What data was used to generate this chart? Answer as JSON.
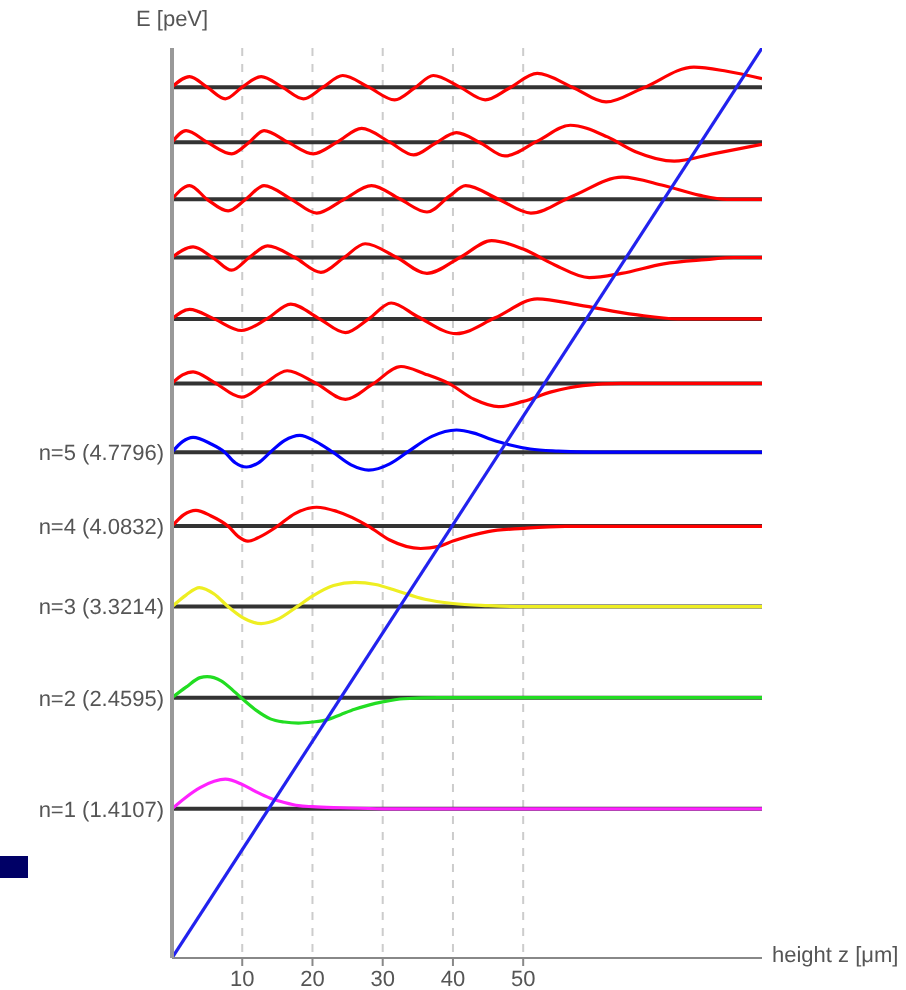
{
  "chart_data": {
    "type": "line",
    "ylabel": "E [peV]",
    "xlabel": "height z [μm]",
    "xlim": [
      0,
      84
    ],
    "xticks": [
      10,
      20,
      30,
      40,
      50
    ],
    "ylim": [
      0,
      8.6
    ],
    "grid": "x",
    "ref_lines": [
      {
        "axis": "y",
        "value": 1.4107,
        "color": "#333333",
        "label": "n=1 (1.4107)"
      },
      {
        "axis": "y",
        "value": 2.4595,
        "color": "#333333",
        "label": "n=2 (2.4595)"
      },
      {
        "axis": "y",
        "value": 3.3214,
        "color": "#333333",
        "label": "n=3 (3.3214)"
      },
      {
        "axis": "y",
        "value": 4.0832,
        "color": "#333333",
        "label": "n=4 (4.0832)"
      },
      {
        "axis": "y",
        "value": 4.7796,
        "color": "#333333",
        "label": "n=5 (4.7796)"
      },
      {
        "axis": "y",
        "value": 5.43,
        "color": "#333333"
      },
      {
        "axis": "y",
        "value": 6.04,
        "color": "#333333"
      },
      {
        "axis": "y",
        "value": 6.62,
        "color": "#333333"
      },
      {
        "axis": "y",
        "value": 7.17,
        "color": "#333333"
      },
      {
        "axis": "y",
        "value": 7.71,
        "color": "#333333"
      },
      {
        "axis": "y",
        "value": 8.23,
        "color": "#333333"
      }
    ],
    "series": [
      {
        "color": "#ff22ff",
        "x": [
          0,
          2,
          4,
          6,
          7.6,
          10,
          12,
          14,
          16,
          18,
          20,
          24,
          30,
          84
        ],
        "values": [
          1.41,
          1.52,
          1.61,
          1.67,
          1.69,
          1.64,
          1.57,
          1.51,
          1.47,
          1.44,
          1.43,
          1.42,
          1.41,
          1.41
        ]
      },
      {
        "color": "#22dd22",
        "x": [
          0,
          2,
          4,
          5,
          7,
          9,
          10,
          12,
          14,
          16,
          18,
          20,
          22,
          24,
          26,
          28,
          30,
          33,
          38,
          84
        ],
        "values": [
          2.46,
          2.56,
          2.65,
          2.66,
          2.62,
          2.51,
          2.45,
          2.34,
          2.26,
          2.23,
          2.22,
          2.23,
          2.25,
          2.3,
          2.35,
          2.39,
          2.42,
          2.45,
          2.46,
          2.46
        ]
      },
      {
        "color": "#eeee22",
        "x": [
          0,
          2,
          3.9,
          6,
          8,
          10,
          12.7,
          15,
          17.8,
          20,
          23,
          26,
          29,
          32,
          36,
          40,
          45,
          50,
          84
        ],
        "values": [
          3.32,
          3.43,
          3.5,
          3.44,
          3.32,
          3.22,
          3.16,
          3.2,
          3.32,
          3.42,
          3.52,
          3.55,
          3.53,
          3.47,
          3.39,
          3.35,
          3.33,
          3.32,
          3.32
        ]
      },
      {
        "color": "#ff0000",
        "x": [
          0,
          1.7,
          3.4,
          5.5,
          8,
          9.5,
          10.8,
          12.5,
          15,
          17.5,
          20.6,
          23.5,
          28,
          31,
          35.4,
          38,
          40,
          45,
          50,
          56,
          62,
          84
        ],
        "values": [
          4.08,
          4.19,
          4.23,
          4.18,
          4.08,
          3.98,
          3.94,
          3.98,
          4.08,
          4.2,
          4.26,
          4.22,
          4.08,
          3.95,
          3.87,
          3.89,
          3.94,
          4.03,
          4.06,
          4.08,
          4.08,
          4.08
        ]
      },
      {
        "color": "#0000ff",
        "x": [
          0,
          1.5,
          3,
          5.5,
          7.5,
          9,
          10.6,
          12.3,
          14,
          16,
          18.2,
          20.5,
          22.9,
          25.5,
          28,
          31,
          33.5,
          37,
          40.5,
          43,
          45.5,
          48,
          51,
          55,
          60,
          84
        ],
        "values": [
          4.78,
          4.88,
          4.92,
          4.86,
          4.78,
          4.68,
          4.64,
          4.68,
          4.78,
          4.89,
          4.94,
          4.88,
          4.78,
          4.66,
          4.61,
          4.67,
          4.78,
          4.93,
          4.99,
          4.96,
          4.9,
          4.85,
          4.81,
          4.79,
          4.78,
          4.78
        ]
      },
      {
        "color": "#ff0000",
        "x": [
          0,
          1.5,
          3,
          6,
          9.9,
          13,
          16.4,
          20.5,
          24.7,
          28.5,
          32.6,
          36,
          39.4,
          43,
          46.5,
          50,
          54,
          58.5,
          64,
          84
        ],
        "values": [
          5.43,
          5.51,
          5.54,
          5.44,
          5.3,
          5.42,
          5.55,
          5.43,
          5.28,
          5.42,
          5.59,
          5.52,
          5.43,
          5.28,
          5.21,
          5.26,
          5.35,
          5.41,
          5.43,
          5.43
        ]
      },
      {
        "color": "#ff0000",
        "x": [
          0,
          2.5,
          6,
          9.9,
          13.5,
          16.9,
          21,
          24.7,
          28,
          31.2,
          35,
          40.5,
          46,
          52,
          58,
          66,
          72,
          84
        ],
        "values": [
          6.04,
          6.13,
          6.04,
          5.93,
          6.04,
          6.18,
          6.04,
          5.91,
          6.04,
          6.19,
          6.06,
          5.9,
          6.05,
          6.23,
          6.17,
          6.08,
          6.04,
          6.04
        ]
      },
      {
        "color": "#ff0000",
        "x": [
          0,
          3,
          5.8,
          8.5,
          11,
          13.6,
          17.5,
          21.2,
          24.5,
          27.5,
          32,
          36.3,
          41,
          45.5,
          50,
          54.5,
          59.4,
          64,
          70,
          76,
          80,
          84
        ],
        "values": [
          6.62,
          6.72,
          6.62,
          6.5,
          6.62,
          6.73,
          6.62,
          6.48,
          6.62,
          6.75,
          6.62,
          6.47,
          6.62,
          6.78,
          6.7,
          6.55,
          6.43,
          6.47,
          6.56,
          6.6,
          6.62,
          6.62
        ]
      },
      {
        "color": "#ff0000",
        "x": [
          0,
          2.5,
          5,
          8,
          10.5,
          13.1,
          17,
          20.6,
          24.5,
          28.4,
          32.5,
          36.3,
          39.5,
          41.8,
          46.5,
          51.1,
          57,
          64.1,
          70,
          75,
          79,
          84
        ],
        "values": [
          7.17,
          7.3,
          7.17,
          7.06,
          7.17,
          7.3,
          7.17,
          7.04,
          7.17,
          7.3,
          7.17,
          7.05,
          7.2,
          7.3,
          7.17,
          7.04,
          7.2,
          7.38,
          7.3,
          7.21,
          7.17,
          7.17
        ]
      },
      {
        "color": "#ff0000",
        "x": [
          0,
          2,
          5,
          8.5,
          11,
          13.1,
          16.5,
          20.1,
          23.5,
          27,
          31,
          34.4,
          37.5,
          40.5,
          44,
          47.4,
          52,
          56.7,
          62,
          66,
          71.5,
          77,
          84
        ],
        "values": [
          7.71,
          7.82,
          7.71,
          7.6,
          7.71,
          7.82,
          7.71,
          7.6,
          7.71,
          7.84,
          7.71,
          7.59,
          7.7,
          7.8,
          7.7,
          7.58,
          7.72,
          7.87,
          7.76,
          7.62,
          7.53,
          7.6,
          7.69
        ]
      },
      {
        "color": "#ff0000",
        "x": [
          0,
          2.5,
          5,
          7.6,
          10,
          12.7,
          15.7,
          18.7,
          21.5,
          24.3,
          28,
          31.7,
          34.5,
          37.2,
          41,
          44.6,
          48,
          52,
          57,
          61.8,
          67,
          74.3,
          79,
          84
        ],
        "values": [
          8.23,
          8.33,
          8.23,
          8.12,
          8.23,
          8.33,
          8.23,
          8.12,
          8.23,
          8.34,
          8.23,
          8.11,
          8.22,
          8.34,
          8.23,
          8.11,
          8.22,
          8.36,
          8.23,
          8.09,
          8.22,
          8.42,
          8.38,
          8.31
        ]
      },
      {
        "color": "#2222ee",
        "x": [
          0,
          84
        ],
        "values": [
          0,
          8.6
        ]
      }
    ]
  }
}
